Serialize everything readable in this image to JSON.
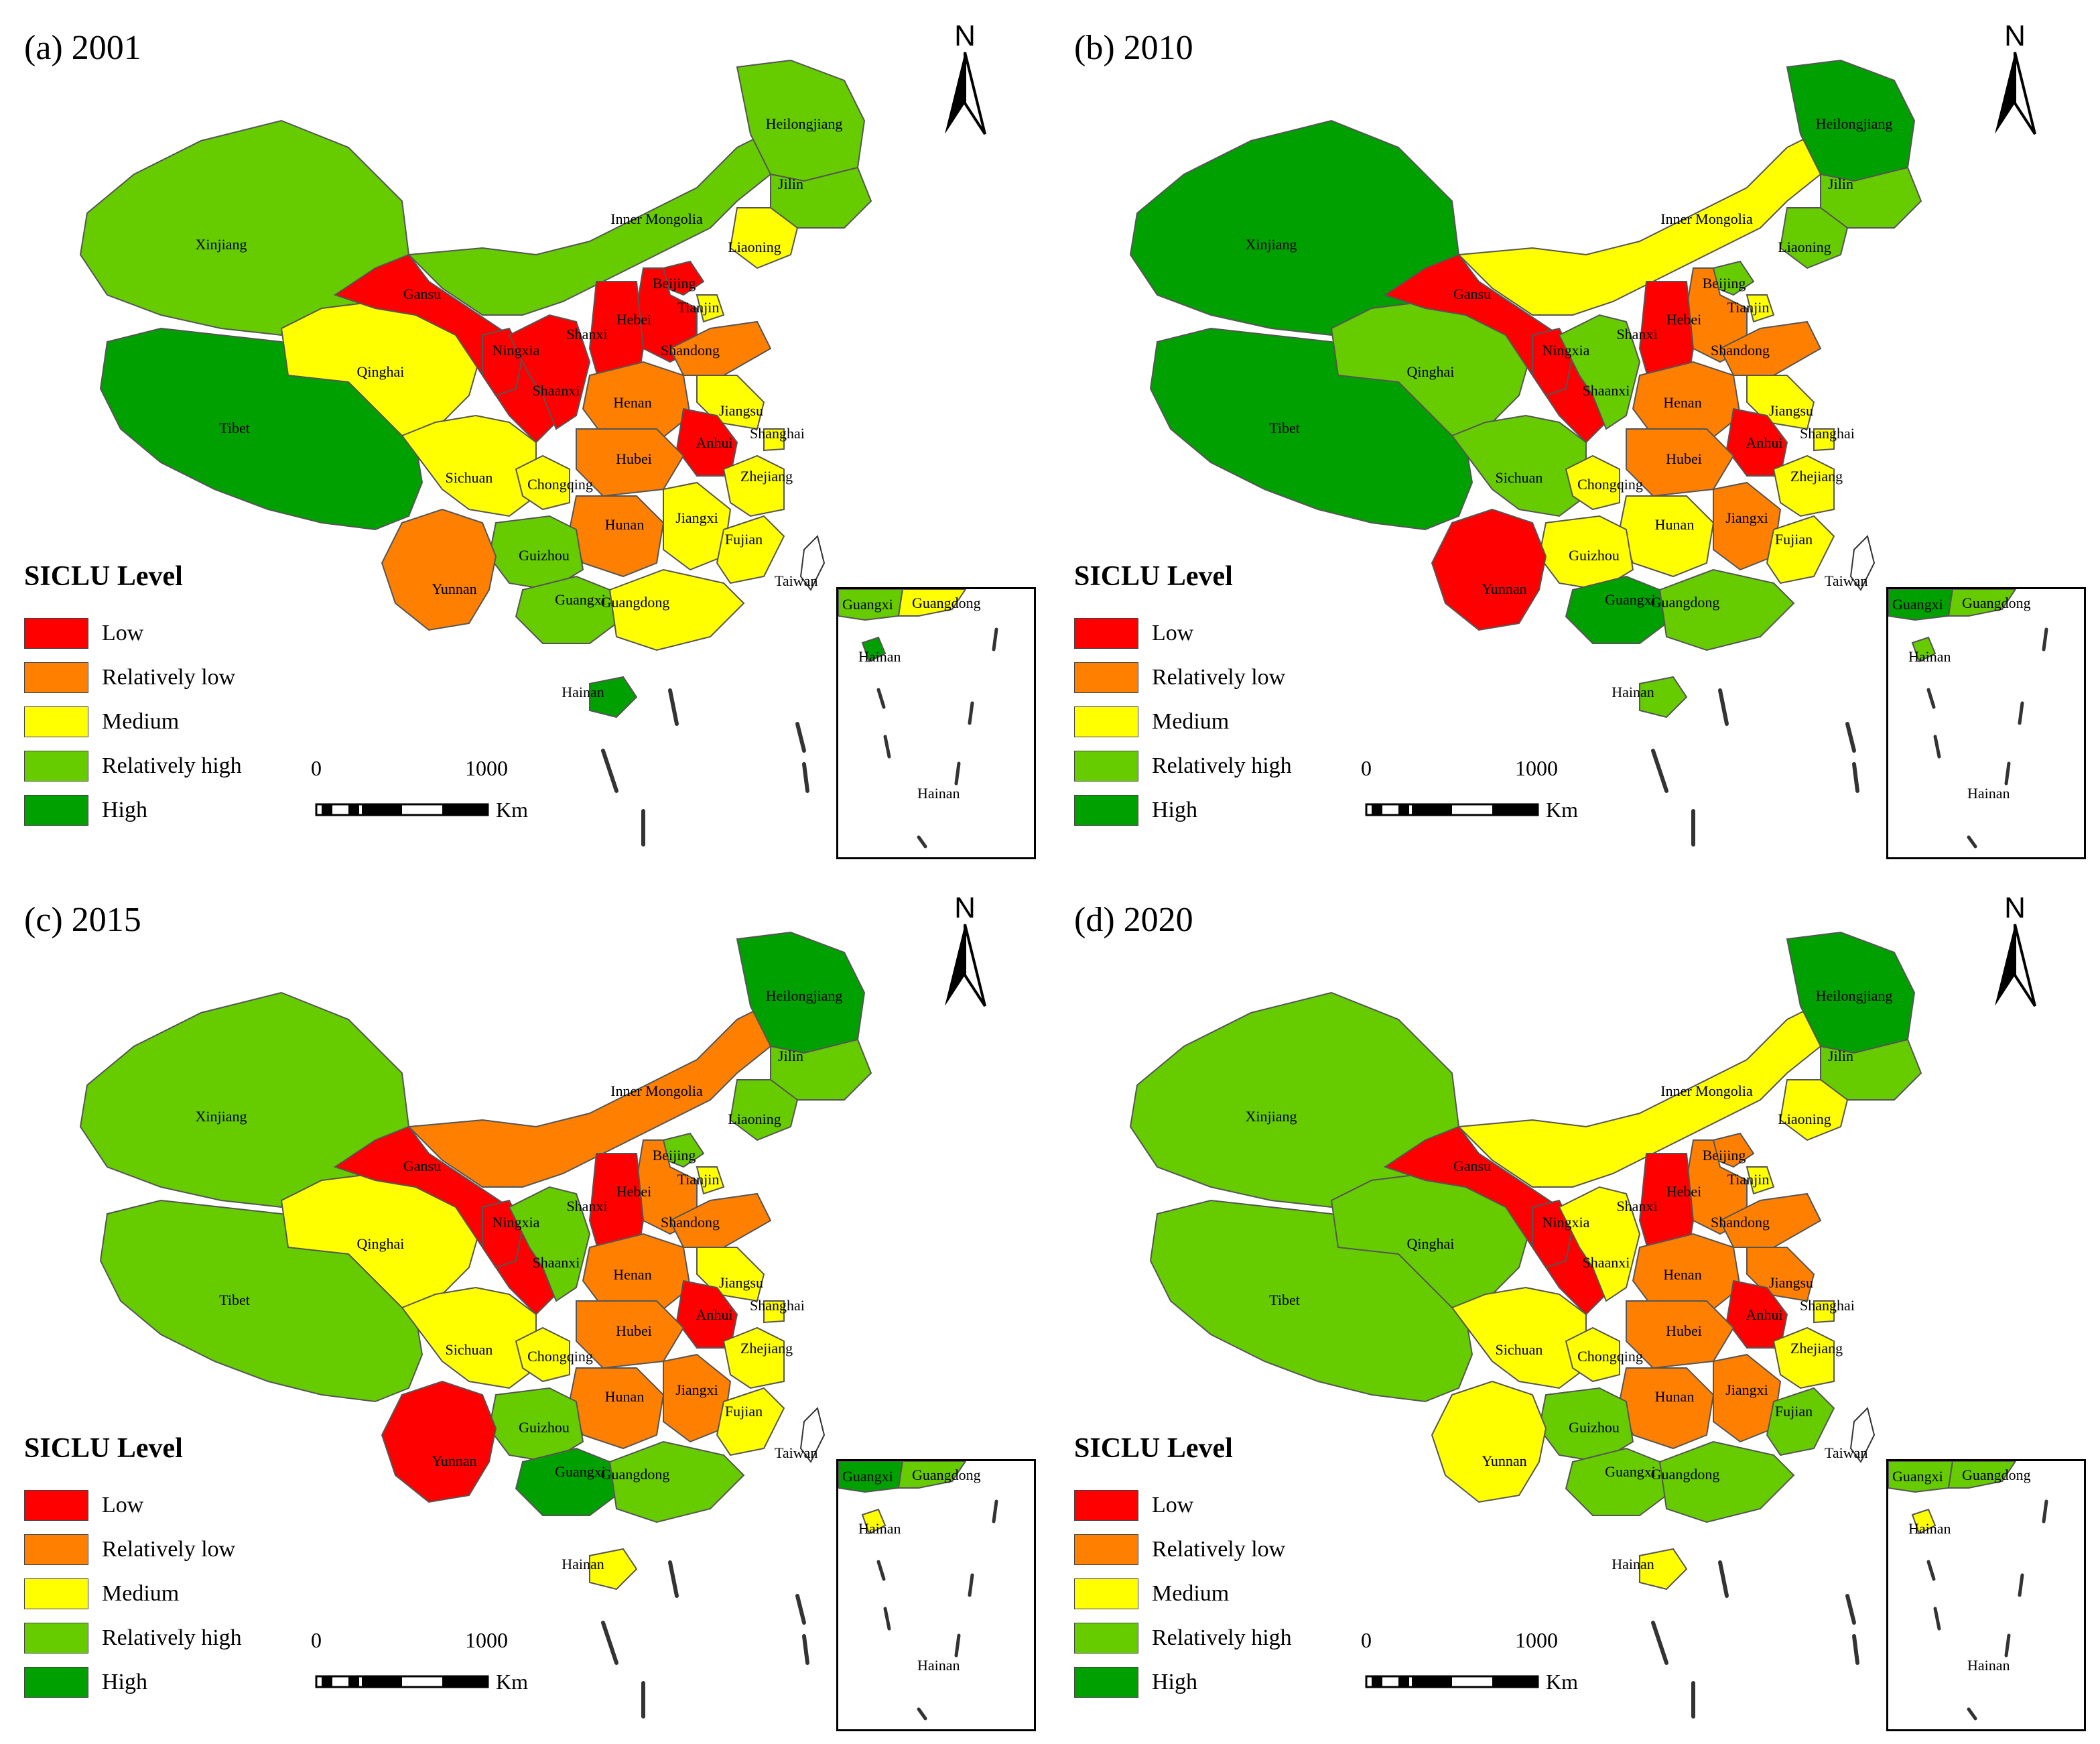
{
  "colors": {
    "Low": "#ff0000",
    "Relatively low": "#ff8000",
    "Medium": "#ffff00",
    "Relatively high": "#66cc00",
    "High": "#00a000",
    "border": "#555555"
  },
  "legend": {
    "title": "SICLU Level",
    "items": [
      "Low",
      "Relatively low",
      "Medium",
      "Relatively high",
      "High"
    ]
  },
  "scale_bar": {
    "start": "0",
    "end": "1000",
    "unit": "Km"
  },
  "north_label": "N",
  "inset_labels": [
    "Guangxi",
    "Guangdong",
    "Hainan",
    "Hainan"
  ],
  "panels": [
    {
      "title": "(a) 2001",
      "levels": {
        "Xinjiang": "Relatively high",
        "Tibet": "High",
        "Qinghai": "Medium",
        "Gansu": "Low",
        "Inner Mongolia": "Relatively high",
        "Heilongjiang": "Relatively high",
        "Jilin": "Relatively high",
        "Liaoning": "Medium",
        "Beijing": "Low",
        "Tianjin": "Medium",
        "Hebei": "Low",
        "Shanxi": "Low",
        "Shandong": "Relatively low",
        "Ningxia": "Low",
        "Shaanxi": "Low",
        "Henan": "Relatively low",
        "Jiangsu": "Medium",
        "Anhui": "Low",
        "Shanghai": "Medium",
        "Hubei": "Relatively low",
        "Sichuan": "Medium",
        "Chongqing": "Medium",
        "Zhejiang": "Medium",
        "Hunan": "Relatively low",
        "Jiangxi": "Medium",
        "Fujian": "Medium",
        "Guizhou": "Relatively high",
        "Yunnan": "Relatively low",
        "Guangxi": "Relatively high",
        "Guangdong": "Medium",
        "Hainan": "High"
      }
    },
    {
      "title": "(b) 2010",
      "levels": {
        "Xinjiang": "High",
        "Tibet": "High",
        "Qinghai": "Relatively high",
        "Gansu": "Low",
        "Inner Mongolia": "Medium",
        "Heilongjiang": "High",
        "Jilin": "Relatively high",
        "Liaoning": "Relatively high",
        "Beijing": "Relatively high",
        "Tianjin": "Medium",
        "Hebei": "Relatively low",
        "Shanxi": "Low",
        "Shandong": "Relatively low",
        "Ningxia": "Low",
        "Shaanxi": "Relatively high",
        "Henan": "Relatively low",
        "Jiangsu": "Medium",
        "Anhui": "Low",
        "Shanghai": "Medium",
        "Hubei": "Relatively low",
        "Sichuan": "Relatively high",
        "Chongqing": "Medium",
        "Zhejiang": "Medium",
        "Hunan": "Medium",
        "Jiangxi": "Relatively low",
        "Fujian": "Medium",
        "Guizhou": "Medium",
        "Yunnan": "Low",
        "Guangxi": "High",
        "Guangdong": "Relatively high",
        "Hainan": "Relatively high"
      }
    },
    {
      "title": "(c) 2015",
      "levels": {
        "Xinjiang": "Relatively high",
        "Tibet": "Relatively high",
        "Qinghai": "Medium",
        "Gansu": "Low",
        "Inner Mongolia": "Relatively low",
        "Heilongjiang": "High",
        "Jilin": "Relatively high",
        "Liaoning": "Relatively high",
        "Beijing": "Relatively high",
        "Tianjin": "Medium",
        "Hebei": "Relatively low",
        "Shanxi": "Low",
        "Shandong": "Relatively low",
        "Ningxia": "Low",
        "Shaanxi": "Relatively high",
        "Henan": "Relatively low",
        "Jiangsu": "Medium",
        "Anhui": "Low",
        "Shanghai": "Medium",
        "Hubei": "Relatively low",
        "Sichuan": "Medium",
        "Chongqing": "Medium",
        "Zhejiang": "Medium",
        "Hunan": "Relatively low",
        "Jiangxi": "Relatively low",
        "Fujian": "Medium",
        "Guizhou": "Relatively high",
        "Yunnan": "Low",
        "Guangxi": "High",
        "Guangdong": "Relatively high",
        "Hainan": "Medium"
      }
    },
    {
      "title": "(d) 2020",
      "levels": {
        "Xinjiang": "Relatively high",
        "Tibet": "Relatively high",
        "Qinghai": "Relatively high",
        "Gansu": "Low",
        "Inner Mongolia": "Medium",
        "Heilongjiang": "High",
        "Jilin": "Relatively high",
        "Liaoning": "Medium",
        "Beijing": "Relatively low",
        "Tianjin": "Medium",
        "Hebei": "Relatively low",
        "Shanxi": "Low",
        "Shandong": "Relatively low",
        "Ningxia": "Low",
        "Shaanxi": "Medium",
        "Henan": "Relatively low",
        "Jiangsu": "Relatively low",
        "Anhui": "Low",
        "Shanghai": "Medium",
        "Hubei": "Relatively low",
        "Sichuan": "Medium",
        "Chongqing": "Medium",
        "Zhejiang": "Medium",
        "Hunan": "Relatively low",
        "Jiangxi": "Relatively low",
        "Fujian": "Relatively high",
        "Guizhou": "Relatively high",
        "Yunnan": "Medium",
        "Guangxi": "Relatively high",
        "Guangdong": "Relatively high",
        "Hainan": "Medium"
      }
    }
  ],
  "taiwan_label": "Taiwan"
}
